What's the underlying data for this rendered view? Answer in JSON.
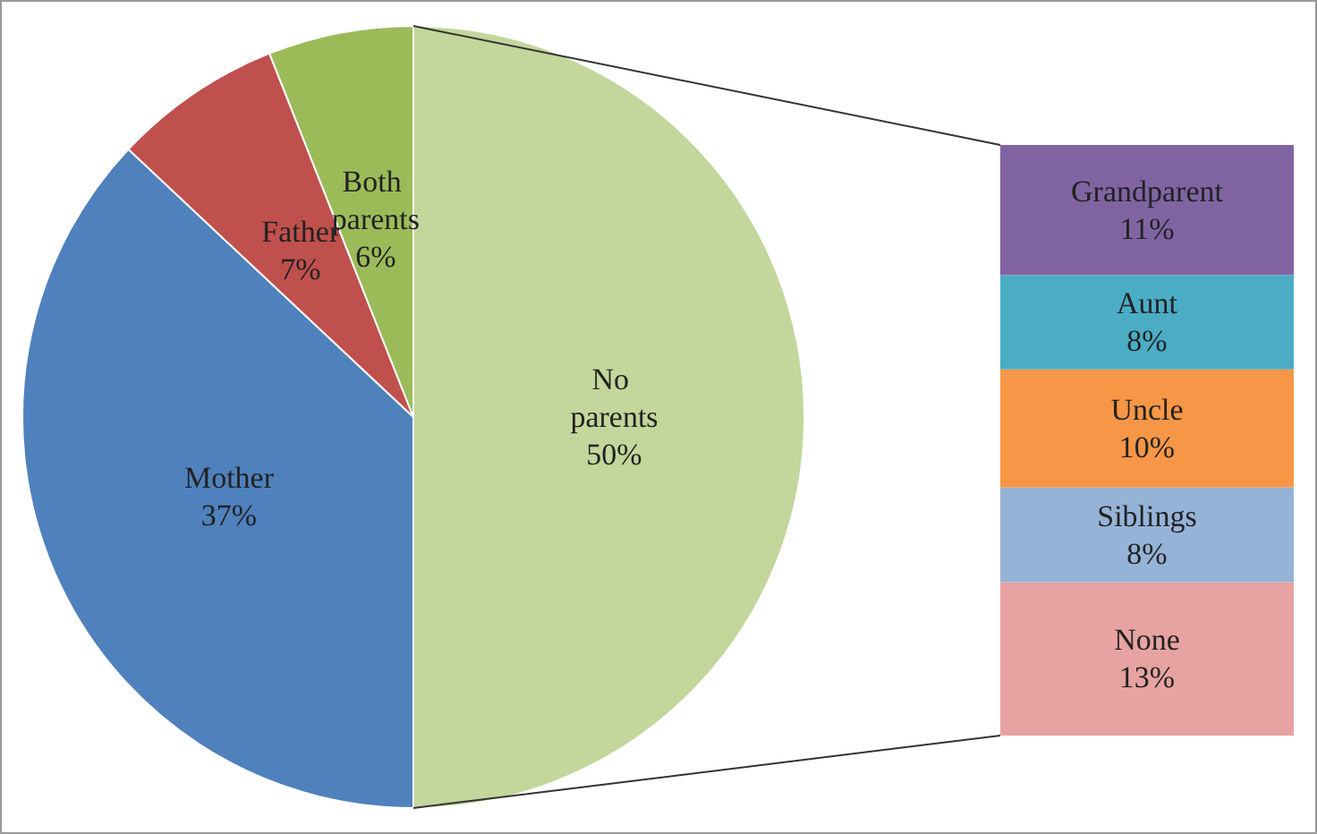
{
  "chart_data": [
    {
      "type": "pie",
      "categories": [
        "No parents",
        "Mother",
        "Father",
        "Both parents"
      ],
      "values": [
        50,
        37,
        7,
        6
      ],
      "colors": [
        "#c3d69b",
        "#4f81bd",
        "#c0504d",
        "#9bbb59"
      ],
      "value_labels": [
        "50%",
        "37%",
        "7%",
        "6%"
      ]
    },
    {
      "type": "bar",
      "stacked": true,
      "tick_labels": false,
      "categories": [
        null
      ],
      "series": [
        {
          "name": "None",
          "color": "#e6a3a1",
          "values": [
            13
          ],
          "value_labels": [
            "13%"
          ]
        },
        {
          "name": "Siblings",
          "color": "#95b3d7",
          "values": [
            8
          ],
          "value_labels": [
            "8%"
          ]
        },
        {
          "name": "Uncle",
          "color": "#f79646",
          "values": [
            10
          ],
          "value_labels": [
            "10%"
          ]
        },
        {
          "name": "Aunt",
          "color": "#4bacc6",
          "values": [
            8
          ],
          "value_labels": [
            "8%"
          ]
        },
        {
          "name": "Grandparent",
          "color": "#8064a2",
          "values": [
            11
          ],
          "value_labels": [
            "11%"
          ]
        }
      ]
    }
  ]
}
